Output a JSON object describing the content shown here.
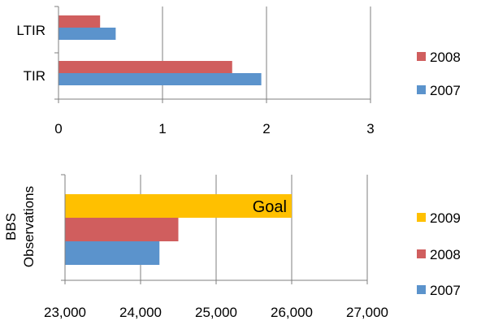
{
  "chart_data": [
    {
      "type": "bar",
      "orientation": "horizontal",
      "categories": [
        "LTIR",
        "TIR"
      ],
      "series": [
        {
          "name": "2008",
          "color": "#D05E5E",
          "values": [
            0.4,
            1.67
          ]
        },
        {
          "name": "2007",
          "color": "#5B93CC",
          "values": [
            0.55,
            1.95
          ]
        }
      ],
      "xlim": [
        0,
        3
      ],
      "xticks": [
        "0",
        "1",
        "2",
        "3"
      ],
      "grid": true,
      "legend": "right"
    },
    {
      "type": "bar",
      "orientation": "horizontal",
      "categories": [
        "BBS Observations"
      ],
      "ylabel_lines": [
        "BBS",
        "Observations"
      ],
      "series": [
        {
          "name": "2009",
          "color": "#FFC000",
          "values": [
            26000
          ],
          "annotation": "Goal"
        },
        {
          "name": "2008",
          "color": "#D05E5E",
          "values": [
            24500
          ]
        },
        {
          "name": "2007",
          "color": "#5B93CC",
          "values": [
            24250
          ]
        }
      ],
      "xlim": [
        23000,
        27000
      ],
      "xticks": [
        "23,000",
        "24,000",
        "25,000",
        "26,000",
        "27,000"
      ],
      "grid": true,
      "legend": "right"
    }
  ]
}
